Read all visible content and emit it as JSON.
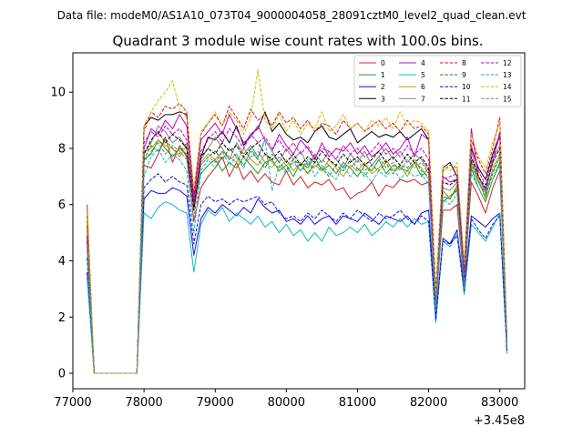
{
  "header": {
    "data_file_label": "Data file: modeM0/AS1A10_073T04_9000004058_28091cztM0_level2_quad_clean.evt"
  },
  "chart_data": {
    "type": "line",
    "title": "Quadrant 3 module wise count rates with 100.0s bins.",
    "xlabel": "",
    "ylabel": "",
    "x_offset_label": "+3.45e8",
    "xlim": [
      77000,
      83350
    ],
    "ylim": [
      -0.55,
      11.4
    ],
    "xticks": [
      77000,
      78000,
      79000,
      80000,
      81000,
      82000,
      83000
    ],
    "xtick_labels": [
      "77000",
      "78000",
      "79000",
      "80000",
      "81000",
      "82000",
      "83000"
    ],
    "yticks": [
      0,
      2,
      4,
      6,
      8,
      10
    ],
    "ytick_labels": [
      "0",
      "2",
      "4",
      "6",
      "8",
      "10"
    ],
    "legend_position": "top-right",
    "legend_columns": 4,
    "x": [
      77200,
      77300,
      77400,
      77500,
      77600,
      77700,
      77800,
      77900,
      78000,
      78100,
      78200,
      78300,
      78400,
      78500,
      78600,
      78700,
      78800,
      78900,
      79000,
      79100,
      79200,
      79300,
      79400,
      79500,
      79600,
      79700,
      79800,
      79900,
      80000,
      80100,
      80200,
      80300,
      80400,
      80500,
      80600,
      80700,
      80800,
      80900,
      81000,
      81100,
      81200,
      81300,
      81400,
      81500,
      81600,
      81700,
      81800,
      81900,
      82000,
      82100,
      82200,
      82300,
      82400,
      82500,
      82600,
      82700,
      82800,
      82900,
      83000,
      83100
    ],
    "series": [
      {
        "name": "0",
        "color": "#d62020",
        "dashed": false,
        "values": [
          6.0,
          0.0,
          0.0,
          0.0,
          0.0,
          0.0,
          0.0,
          0.0,
          7.4,
          7.3,
          7.8,
          8.4,
          7.5,
          8.1,
          7.7,
          5.4,
          6.6,
          7.0,
          7.3,
          7.7,
          7.0,
          7.5,
          6.9,
          7.2,
          6.8,
          7.1,
          6.8,
          6.7,
          7.2,
          6.7,
          7.0,
          6.6,
          6.8,
          6.7,
          6.9,
          6.5,
          6.6,
          6.2,
          6.4,
          6.5,
          6.8,
          6.3,
          6.7,
          6.6,
          6.9,
          6.8,
          6.9,
          6.7,
          6.8,
          2.3,
          5.8,
          5.8,
          6.0,
          3.1,
          6.8,
          6.3,
          5.7,
          6.6,
          7.2,
          1.0
        ]
      },
      {
        "name": "1",
        "color": "#1e9a1e",
        "dashed": false,
        "values": [
          5.6,
          0.0,
          0.0,
          0.0,
          0.0,
          0.0,
          0.0,
          0.0,
          7.6,
          7.8,
          8.3,
          8.0,
          7.7,
          8.0,
          7.8,
          6.0,
          7.1,
          7.4,
          7.6,
          7.2,
          7.5,
          7.3,
          7.7,
          7.4,
          7.1,
          7.5,
          7.6,
          7.2,
          7.4,
          7.0,
          7.5,
          7.3,
          7.7,
          7.2,
          7.4,
          7.1,
          7.5,
          7.3,
          7.0,
          7.4,
          7.2,
          7.6,
          7.1,
          7.4,
          7.3,
          7.2,
          7.5,
          7.0,
          7.3,
          2.4,
          6.1,
          6.3,
          6.5,
          3.3,
          7.3,
          6.6,
          6.1,
          6.9,
          7.5,
          1.1
        ]
      },
      {
        "name": "2",
        "color": "#1010e0",
        "dashed": false,
        "values": [
          3.6,
          0.0,
          0.0,
          0.0,
          0.0,
          0.0,
          0.0,
          0.0,
          6.2,
          6.5,
          6.4,
          6.4,
          6.6,
          6.5,
          6.3,
          4.2,
          5.5,
          5.9,
          5.7,
          6.0,
          5.8,
          5.6,
          5.9,
          5.7,
          6.2,
          5.9,
          5.7,
          5.8,
          5.4,
          5.5,
          5.3,
          5.6,
          5.3,
          5.5,
          5.6,
          5.3,
          5.6,
          5.5,
          5.4,
          5.7,
          5.5,
          5.3,
          5.6,
          5.5,
          5.4,
          5.6,
          5.3,
          5.7,
          5.8,
          2.0,
          4.8,
          4.6,
          5.1,
          3.0,
          5.6,
          5.4,
          5.2,
          5.5,
          5.7,
          0.8
        ]
      },
      {
        "name": "3",
        "color": "#000000",
        "dashed": false,
        "values": [
          4.9,
          0.0,
          0.0,
          0.0,
          0.0,
          0.0,
          0.0,
          0.0,
          8.8,
          9.1,
          9.0,
          9.2,
          9.2,
          9.3,
          9.2,
          6.0,
          7.7,
          8.4,
          8.3,
          8.6,
          8.2,
          8.8,
          8.1,
          8.5,
          8.7,
          9.3,
          8.6,
          8.9,
          8.5,
          8.3,
          8.4,
          8.2,
          8.6,
          8.8,
          8.4,
          8.3,
          8.5,
          8.7,
          8.2,
          8.4,
          8.6,
          8.4,
          8.5,
          8.4,
          8.6,
          8.3,
          8.5,
          8.7,
          8.3,
          2.7,
          7.3,
          7.5,
          7.0,
          3.7,
          8.0,
          7.3,
          6.9,
          7.8,
          8.5,
          1.2
        ]
      },
      {
        "name": "4",
        "color": "#c000c0",
        "dashed": false,
        "values": [
          5.3,
          0.0,
          0.0,
          0.0,
          0.0,
          0.0,
          0.0,
          0.0,
          8.0,
          8.7,
          8.5,
          9.0,
          8.7,
          9.2,
          8.8,
          6.2,
          8.3,
          8.6,
          8.9,
          8.5,
          9.2,
          8.7,
          8.2,
          8.4,
          8.8,
          8.3,
          7.9,
          8.5,
          8.1,
          7.8,
          8.3,
          8.0,
          7.6,
          8.2,
          7.7,
          8.0,
          7.9,
          8.2,
          7.8,
          8.1,
          7.7,
          7.9,
          8.2,
          7.8,
          8.0,
          8.4,
          7.7,
          8.5,
          8.3,
          2.6,
          7.0,
          6.8,
          6.9,
          3.5,
          8.7,
          7.0,
          6.5,
          7.5,
          8.6,
          1.0
        ]
      },
      {
        "name": "5",
        "color": "#10b8c0",
        "dashed": false,
        "values": [
          3.4,
          0.0,
          0.0,
          0.0,
          0.0,
          0.0,
          0.0,
          0.0,
          5.7,
          5.5,
          5.9,
          6.1,
          6.0,
          5.8,
          5.7,
          3.6,
          5.3,
          5.8,
          5.6,
          5.9,
          5.4,
          5.7,
          5.5,
          5.3,
          5.6,
          5.2,
          5.4,
          5.0,
          5.3,
          4.9,
          5.1,
          4.7,
          5.0,
          4.7,
          5.2,
          4.9,
          5.0,
          5.2,
          5.0,
          5.3,
          4.9,
          5.1,
          5.4,
          5.2,
          5.5,
          5.2,
          5.5,
          5.3,
          5.4,
          1.8,
          4.7,
          4.5,
          5.0,
          2.8,
          5.3,
          5.0,
          4.7,
          5.2,
          5.7,
          0.7
        ]
      },
      {
        "name": "6",
        "color": "#c89a00",
        "dashed": false,
        "values": [
          5.4,
          0.0,
          0.0,
          0.0,
          0.0,
          0.0,
          0.0,
          0.0,
          7.9,
          8.0,
          8.3,
          8.1,
          8.0,
          7.7,
          8.1,
          5.8,
          7.5,
          7.8,
          7.6,
          7.9,
          7.7,
          7.5,
          8.0,
          7.6,
          7.4,
          7.8,
          7.5,
          7.3,
          7.6,
          7.2,
          7.5,
          7.1,
          7.4,
          7.2,
          7.6,
          7.3,
          7.0,
          7.4,
          7.2,
          7.5,
          7.1,
          7.3,
          7.6,
          7.2,
          7.4,
          7.0,
          7.5,
          7.3,
          6.9,
          2.3,
          6.5,
          6.2,
          6.7,
          3.2,
          7.6,
          6.9,
          6.2,
          7.3,
          7.8,
          1.1
        ]
      },
      {
        "name": "7",
        "color": "#808080",
        "dashed": false,
        "values": [
          5.1,
          0.0,
          0.0,
          0.0,
          0.0,
          0.0,
          0.0,
          0.0,
          7.8,
          8.2,
          8.8,
          8.6,
          8.2,
          8.4,
          8.0,
          5.9,
          7.6,
          8.0,
          8.4,
          8.0,
          7.6,
          8.2,
          7.8,
          8.1,
          7.7,
          8.3,
          7.9,
          7.5,
          8.0,
          7.6,
          7.9,
          7.4,
          7.8,
          7.5,
          7.9,
          7.6,
          7.3,
          7.8,
          7.5,
          7.9,
          7.4,
          7.7,
          8.0,
          7.6,
          7.9,
          7.5,
          7.8,
          7.6,
          7.2,
          2.5,
          6.6,
          6.5,
          6.8,
          3.3,
          7.9,
          7.0,
          6.4,
          7.6,
          8.1,
          1.1
        ]
      },
      {
        "name": "8",
        "color": "#e01010",
        "dashed": true,
        "values": [
          5.2,
          0.0,
          0.0,
          0.0,
          0.0,
          0.0,
          0.0,
          0.0,
          8.6,
          9.3,
          9.1,
          9.5,
          9.4,
          9.6,
          9.3,
          6.4,
          8.5,
          8.9,
          9.2,
          8.8,
          9.5,
          9.1,
          8.7,
          9.4,
          9.0,
          9.2,
          8.8,
          9.3,
          8.9,
          9.1,
          8.7,
          9.0,
          8.6,
          8.9,
          8.8,
          8.5,
          9.0,
          8.7,
          8.9,
          8.6,
          8.8,
          9.0,
          8.7,
          8.9,
          8.6,
          9.0,
          8.7,
          8.8,
          8.5,
          2.9,
          7.2,
          7.4,
          7.3,
          3.8,
          8.3,
          7.6,
          7.1,
          8.0,
          9.1,
          1.2
        ]
      },
      {
        "name": "9",
        "color": "#109010",
        "dashed": true,
        "values": [
          4.8,
          0.0,
          0.0,
          0.0,
          0.0,
          0.0,
          0.0,
          0.0,
          7.6,
          8.1,
          7.9,
          8.3,
          8.0,
          7.8,
          8.2,
          5.9,
          7.4,
          7.7,
          7.9,
          7.6,
          8.0,
          7.7,
          7.4,
          7.9,
          7.6,
          7.3,
          7.8,
          7.5,
          7.2,
          7.6,
          7.4,
          7.1,
          7.5,
          7.3,
          7.0,
          7.4,
          7.2,
          7.6,
          7.3,
          7.0,
          7.4,
          7.2,
          7.5,
          7.1,
          7.4,
          7.3,
          7.6,
          7.2,
          7.0,
          2.4,
          6.3,
          6.2,
          6.6,
          3.2,
          7.5,
          6.8,
          6.3,
          7.1,
          7.7,
          1.0
        ]
      },
      {
        "name": "10",
        "color": "#1010e0",
        "dashed": true,
        "values": [
          4.1,
          0.0,
          0.0,
          0.0,
          0.0,
          0.0,
          0.0,
          0.0,
          6.6,
          6.9,
          7.1,
          6.8,
          7.0,
          6.8,
          6.7,
          4.6,
          6.0,
          6.3,
          6.1,
          6.2,
          6.0,
          6.2,
          6.1,
          6.2,
          6.3,
          6.0,
          6.1,
          5.7,
          5.5,
          5.6,
          5.4,
          5.7,
          5.5,
          5.8,
          5.6,
          5.4,
          5.7,
          5.5,
          5.8,
          5.6,
          5.4,
          5.7,
          5.5,
          5.6,
          5.8,
          5.5,
          5.3,
          5.6,
          5.4,
          1.9,
          4.7,
          4.6,
          4.9,
          2.9,
          5.5,
          5.1,
          4.8,
          5.3,
          5.6,
          0.8
        ]
      },
      {
        "name": "11",
        "color": "#000000",
        "dashed": true,
        "values": [
          4.7,
          0.0,
          0.0,
          0.0,
          0.0,
          0.0,
          0.0,
          0.0,
          7.8,
          8.3,
          8.6,
          8.2,
          8.5,
          8.3,
          8.0,
          5.8,
          7.7,
          8.0,
          7.8,
          8.2,
          7.9,
          8.1,
          7.7,
          8.0,
          8.2,
          7.8,
          7.6,
          7.9,
          7.5,
          7.8,
          7.4,
          7.7,
          7.5,
          7.9,
          7.6,
          7.4,
          7.8,
          7.5,
          7.7,
          7.4,
          7.6,
          7.9,
          7.5,
          7.7,
          7.4,
          7.8,
          7.5,
          7.7,
          7.3,
          2.4,
          6.8,
          6.7,
          6.9,
          3.4,
          7.7,
          7.0,
          6.6,
          7.5,
          8.0,
          1.1
        ]
      },
      {
        "name": "12",
        "color": "#c000c0",
        "dashed": true,
        "values": [
          4.9,
          0.0,
          0.0,
          0.0,
          0.0,
          0.0,
          0.0,
          0.0,
          8.2,
          8.6,
          8.4,
          8.8,
          8.5,
          8.7,
          8.3,
          6.0,
          7.9,
          8.3,
          8.6,
          8.2,
          8.7,
          8.4,
          8.0,
          8.5,
          8.2,
          8.4,
          8.0,
          8.3,
          7.9,
          8.2,
          7.8,
          8.1,
          7.7,
          8.0,
          7.9,
          7.6,
          8.1,
          7.8,
          8.0,
          7.7,
          7.9,
          8.2,
          7.8,
          8.0,
          7.7,
          8.1,
          7.8,
          8.0,
          7.6,
          2.5,
          6.9,
          7.0,
          7.1,
          3.5,
          8.1,
          7.2,
          6.7,
          7.7,
          8.4,
          1.1
        ]
      },
      {
        "name": "13",
        "color": "#10b8c0",
        "dashed": true,
        "values": [
          4.4,
          0.0,
          0.0,
          0.0,
          0.0,
          0.0,
          0.0,
          0.0,
          7.0,
          7.7,
          8.0,
          7.5,
          7.8,
          7.6,
          7.2,
          5.0,
          7.2,
          7.6,
          7.3,
          7.9,
          7.4,
          7.7,
          7.3,
          8.0,
          7.6,
          8.3,
          6.5,
          7.4,
          7.1,
          7.5,
          7.2,
          7.6,
          7.0,
          7.4,
          7.1,
          6.9,
          7.4,
          7.0,
          7.3,
          7.1,
          6.8,
          7.2,
          7.0,
          7.3,
          6.9,
          7.2,
          7.0,
          7.1,
          6.7,
          2.2,
          6.2,
          6.0,
          6.4,
          3.0,
          7.1,
          6.6,
          6.1,
          6.9,
          7.4,
          1.0
        ]
      },
      {
        "name": "14",
        "color": "#c8c000",
        "dashed": true,
        "values": [
          5.7,
          0.0,
          0.0,
          0.0,
          0.0,
          0.0,
          0.0,
          0.0,
          8.8,
          9.3,
          9.7,
          10.0,
          10.4,
          9.4,
          9.1,
          6.6,
          8.6,
          8.9,
          9.3,
          8.8,
          9.3,
          9.0,
          8.5,
          9.1,
          10.8,
          9.0,
          8.7,
          9.2,
          8.6,
          9.0,
          8.5,
          8.9,
          8.7,
          9.3,
          8.6,
          8.8,
          9.2,
          8.7,
          8.9,
          8.6,
          9.0,
          8.8,
          9.1,
          8.7,
          9.3,
          8.8,
          9.0,
          8.9,
          8.6,
          2.8,
          7.4,
          7.2,
          7.5,
          3.9,
          8.5,
          7.7,
          7.3,
          8.2,
          8.9,
          1.2
        ]
      },
      {
        "name": "15",
        "color": "#808080",
        "dashed": true,
        "values": [
          4.6,
          0.0,
          0.0,
          0.0,
          0.0,
          0.0,
          0.0,
          0.0,
          7.5,
          7.9,
          8.2,
          7.8,
          8.1,
          7.9,
          7.6,
          5.5,
          7.4,
          7.7,
          7.5,
          7.9,
          7.6,
          7.8,
          7.4,
          7.7,
          7.9,
          7.5,
          7.3,
          7.7,
          7.4,
          7.6,
          7.2,
          7.5,
          7.3,
          7.6,
          7.4,
          7.1,
          7.5,
          7.3,
          7.6,
          7.2,
          7.4,
          7.7,
          7.3,
          7.5,
          7.2,
          7.6,
          7.3,
          7.5,
          7.1,
          2.3,
          6.4,
          6.3,
          6.6,
          3.1,
          7.4,
          6.8,
          6.4,
          7.2,
          7.7,
          1.0
        ]
      }
    ]
  }
}
